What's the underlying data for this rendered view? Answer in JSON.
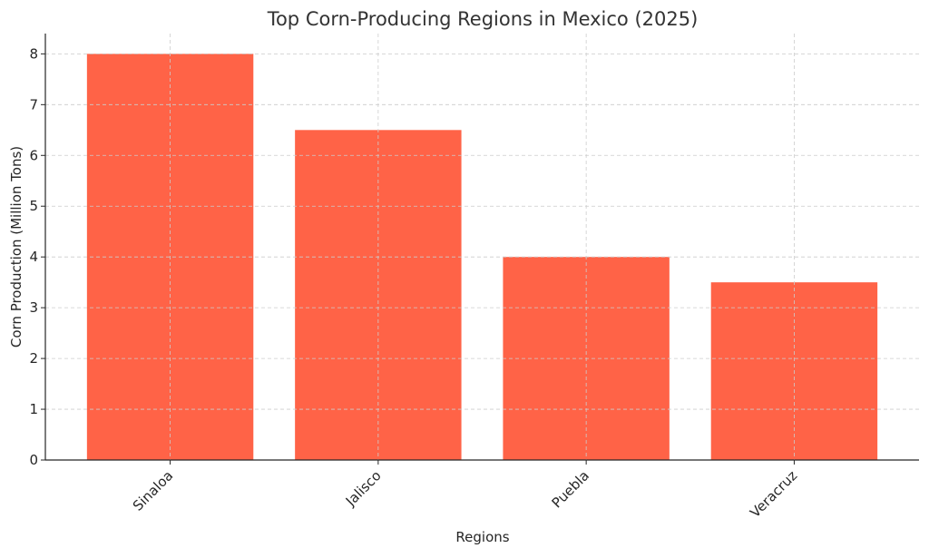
{
  "chart_data": {
    "type": "bar",
    "title": "Top Corn-Producing Regions in Mexico (2025)",
    "xlabel": "Regions",
    "ylabel": "Corn Production (Million Tons)",
    "categories": [
      "Sinaloa",
      "Jalisco",
      "Puebla",
      "Veracruz"
    ],
    "values": [
      8,
      6.5,
      4,
      3.5
    ],
    "ylim": [
      0,
      8.4
    ],
    "yticks": [
      0,
      1,
      2,
      3,
      4,
      5,
      6,
      7,
      8
    ],
    "grid": true,
    "bar_color": "#ff6347"
  }
}
